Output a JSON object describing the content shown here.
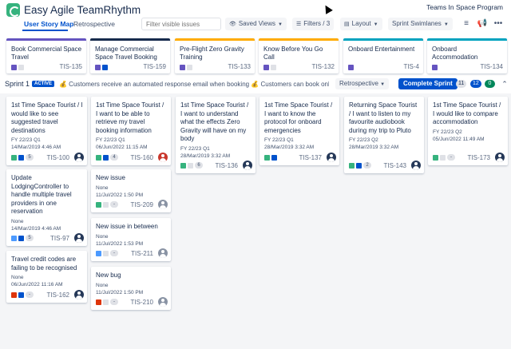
{
  "app": {
    "title": "Easy Agile TeamRhythm",
    "project": "Teams In Space Program"
  },
  "tabs": [
    {
      "label": "User Story Map",
      "active": true
    },
    {
      "label": "Retrospective",
      "active": false
    }
  ],
  "toolbar": {
    "search_placeholder": "Filter visible issues",
    "saved_views": "Saved Views",
    "filters": "Filters / 3",
    "layout": "Layout",
    "swimlanes": "Sprint Swimlanes",
    "icons": [
      "rows-icon",
      "megaphone-icon",
      "more-icon"
    ]
  },
  "epics": [
    {
      "title": "Book Commercial Space Travel",
      "key": "TIS-135",
      "color": "#6554c0"
    },
    {
      "title": "Manage Commercial Space Travel Booking",
      "key": "TIS-159",
      "color": "#172b4d"
    },
    {
      "title": "Pre-Flight Zero Gravity Training",
      "key": "TIS-133",
      "color": "#ffab00"
    },
    {
      "title": "Know Before You Go Call",
      "key": "TIS-132",
      "color": "#ffab00"
    },
    {
      "title": "Onboard Entertainment",
      "key": "TIS-4",
      "color": "#00a3bf"
    },
    {
      "title": "Onboard Accommodation",
      "key": "TIS-134",
      "color": "#00a3bf"
    }
  ],
  "sprint": {
    "name": "Sprint 1",
    "status": "ACTIVE",
    "goal": "💰 Customers receive an automated response email when booking 💰 Customers can book onb...",
    "retro_label": "Retrospective",
    "complete_label": "Complete Sprint",
    "counts": {
      "todo": "11",
      "in_progress": "12",
      "done": "0"
    },
    "count_colors": {
      "todo": "#dfe1e6",
      "in_progress": "#0052cc",
      "done": "#00875a"
    }
  },
  "cards": {
    "col1": [
      {
        "title": "1st Time Space Tourist / I would like to see suggested travel destinations",
        "meta1": "FY 22/23 Q1",
        "meta2": "14/Mar/2019 4:46 AM",
        "key": "TIS-100",
        "est": "5",
        "type_color": "#36b37e",
        "prio_color": "#0052cc",
        "avatar": "dark"
      },
      {
        "title": "Update LodgingController to handle multiple travel providers in one reservation",
        "meta1": "None",
        "meta2": "14/Mar/2019 4:46 AM",
        "key": "TIS-97",
        "est": "5",
        "type_color": "#4c9aff",
        "prio_color": "#0052cc",
        "avatar": "dark"
      },
      {
        "title": "Travel credit codes are failing to be recognised",
        "meta1": "None",
        "meta2": "06/Jun/2022 11:16 AM",
        "key": "TIS-162",
        "est": "-",
        "type_color": "#de350b",
        "prio_color": "#0052cc",
        "avatar": "dark"
      }
    ],
    "col2": [
      {
        "title": "1st Time Space Tourist / I want to be able to retrieve my travel booking information",
        "meta1": "FY 22/23 Q1",
        "meta2": "06/Jun/2022 11:15 AM",
        "key": "TIS-160",
        "est": "4",
        "type_color": "#36b37e",
        "prio_color": "#0052cc",
        "avatar": "red"
      },
      {
        "title": "New issue",
        "meta1": "None",
        "meta2": "11/Jul/2022 1:50 PM",
        "key": "TIS-209",
        "est": "-",
        "type_color": "#36b37e",
        "prio_color": "#dfe1e6",
        "avatar": "grey"
      },
      {
        "title": "New issue in between",
        "meta1": "None",
        "meta2": "11/Jul/2022 1:53 PM",
        "key": "TIS-211",
        "est": "-",
        "type_color": "#4c9aff",
        "prio_color": "#dfe1e6",
        "avatar": "grey"
      },
      {
        "title": "New bug",
        "meta1": "None",
        "meta2": "11/Jul/2022 1:50 PM",
        "key": "TIS-210",
        "est": "-",
        "type_color": "#de350b",
        "prio_color": "#dfe1e6",
        "avatar": "grey"
      }
    ],
    "col3": [
      {
        "title": "1st Time Space Tourist / I want to understand what the effects Zero Gravity will have on my body",
        "meta1": "FY 22/23 Q1",
        "meta2": "28/Mar/2019 3:32 AM",
        "key": "TIS-136",
        "est": "6",
        "type_color": "#36b37e",
        "prio_color": "#dfe1e6",
        "avatar": "dark"
      }
    ],
    "col4": [
      {
        "title": "1st Time Space Tourist / I want to know the protocol for onboard emergencies",
        "meta1": "FY 22/23 Q1",
        "meta2": "28/Mar/2019 3:32 AM",
        "key": "TIS-137",
        "est": "",
        "type_color": "#36b37e",
        "prio_color": "#0052cc",
        "avatar": "dark"
      }
    ],
    "col5": [
      {
        "title": "Returning Space Tourist / I want to listen to my favourite audiobook during my trip to Pluto",
        "meta1": "FY 22/23 Q2",
        "meta2": "28/Mar/2019 3:32 AM",
        "key": "TIS-143",
        "est": "2",
        "type_color": "#36b37e",
        "prio_color": "#0052cc",
        "avatar": "dark"
      }
    ],
    "col6": [
      {
        "title": "1st Time Space Tourist / I would like to compare accommodation",
        "meta1": "FY 22/23 Q2",
        "meta2": "05/Jun/2022 11:49 AM",
        "key": "TIS-173",
        "est": "-",
        "type_color": "#36b37e",
        "prio_color": "#dfe1e6",
        "avatar": "dark"
      }
    ]
  }
}
